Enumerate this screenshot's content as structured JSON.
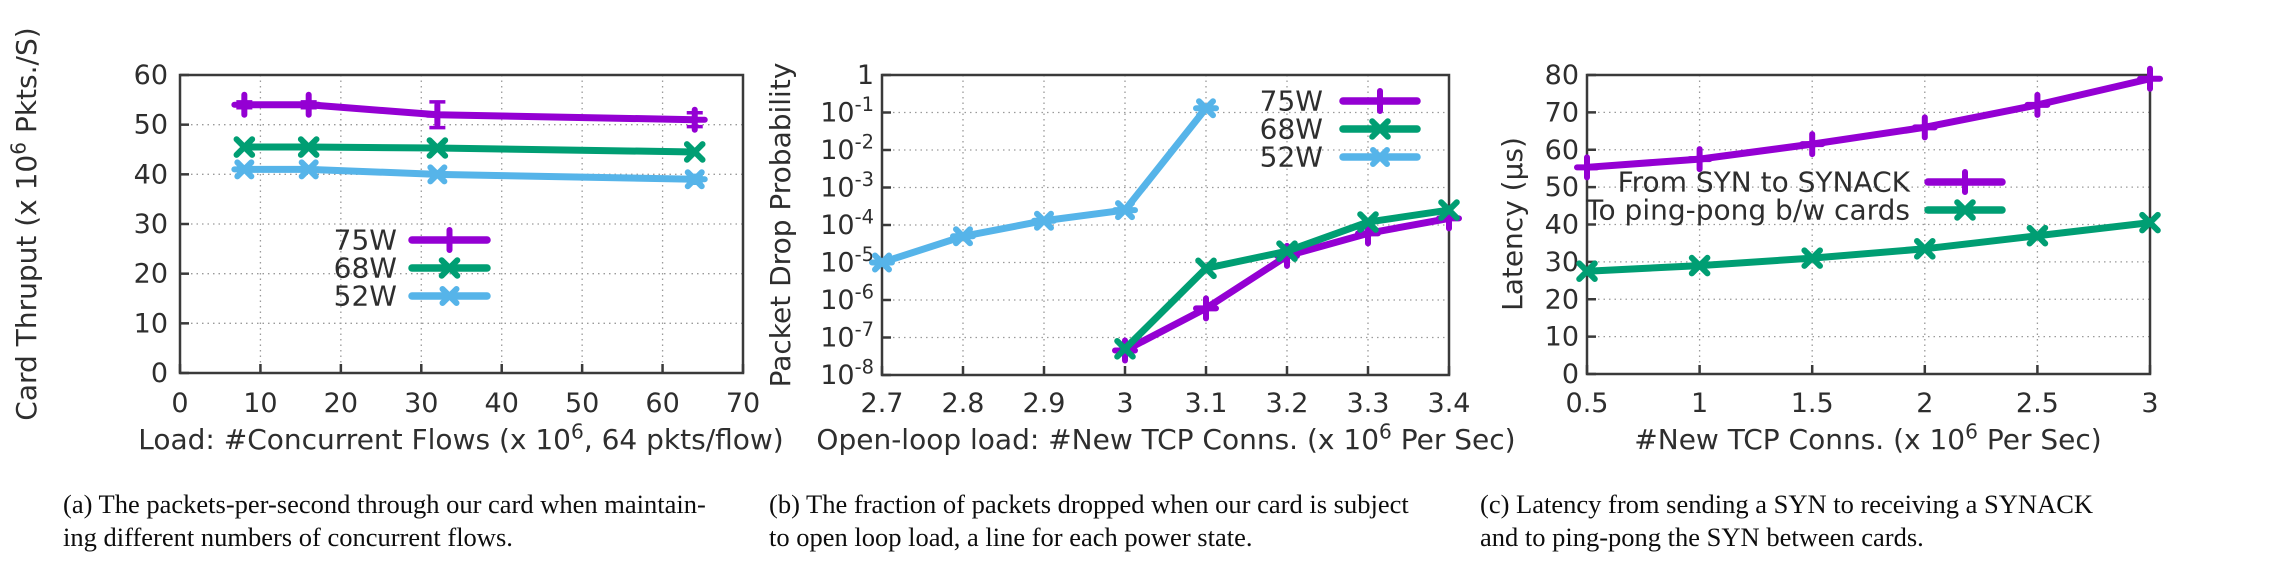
{
  "figure": {
    "background": "#ffffff",
    "frame_color": "#3a3a3a",
    "grid_color": "#9a9a9a",
    "text_color": "#2e2e2e",
    "series_colors": {
      "purple": "#9400d3",
      "green": "#009e73",
      "blue": "#56b4e9"
    }
  },
  "chart_data": [
    {
      "id": "a",
      "type": "line",
      "title": "",
      "xlabel": "Load: #Concurrent Flows (x 10^6, 64 pkts/flow)",
      "ylabel": "Card Thruput (x 10^6 Pkts./S)",
      "xlim": [
        0,
        70
      ],
      "ylim": [
        0,
        60
      ],
      "yscale": "linear",
      "grid": true,
      "legend_position": "inside-center-left",
      "xticks": [
        0,
        10,
        20,
        30,
        40,
        50,
        60,
        70
      ],
      "xtick_labels": [
        "0",
        "10",
        "20",
        "30",
        "40",
        "50",
        "60",
        "70"
      ],
      "yticks": [
        0,
        10,
        20,
        30,
        40,
        50,
        60
      ],
      "ytick_labels": [
        "0",
        "10",
        "20",
        "30",
        "40",
        "50",
        "60"
      ],
      "series": [
        {
          "name": "75W",
          "color": "purple",
          "marker": "plus",
          "x": [
            8,
            16,
            32,
            64
          ],
          "y": [
            54,
            54,
            52,
            51
          ],
          "yerr": [
            0.6,
            0.6,
            2.6,
            1.4
          ]
        },
        {
          "name": "68W",
          "color": "green",
          "marker": "cross",
          "x": [
            8,
            16,
            32,
            64
          ],
          "y": [
            45.5,
            45.5,
            45.3,
            44.5
          ],
          "yerr": [
            0,
            0,
            0,
            0
          ]
        },
        {
          "name": "52W",
          "color": "blue",
          "marker": "star",
          "x": [
            8,
            16,
            32,
            64
          ],
          "y": [
            41,
            41,
            40,
            39
          ],
          "yerr": [
            0,
            0,
            0,
            0.8
          ]
        }
      ]
    },
    {
      "id": "b",
      "type": "line",
      "title": "",
      "xlabel": "Open-loop load: #New TCP Conns. (x 10^6 Per Sec)",
      "ylabel": "Packet Drop Probability",
      "xlim": [
        2.7,
        3.4
      ],
      "ylim": [
        1e-08,
        1
      ],
      "yscale": "log",
      "grid": true,
      "legend_position": "inside-top-right",
      "xticks": [
        2.7,
        2.8,
        2.9,
        3.0,
        3.1,
        3.2,
        3.3,
        3.4
      ],
      "xtick_labels": [
        "2.7",
        "2.8",
        "2.9",
        "3",
        "3.1",
        "3.2",
        "3.3",
        "3.4"
      ],
      "yticks": [
        1,
        0.1,
        0.01,
        0.001,
        0.0001,
        1e-05,
        1e-06,
        1e-07,
        1e-08
      ],
      "ytick_labels": [
        "1",
        "10^-1",
        "10^-2",
        "10^-3",
        "10^-4",
        "10^-5",
        "10^-6",
        "10^-7",
        "10^-8"
      ],
      "series": [
        {
          "name": "75W",
          "color": "purple",
          "marker": "plus",
          "x": [
            3.0,
            3.1,
            3.2,
            3.3,
            3.4
          ],
          "y": [
            4.5e-08,
            6e-07,
            1.5e-05,
            6e-05,
            0.00015
          ],
          "yerr": [
            0,
            0,
            0,
            0,
            0
          ]
        },
        {
          "name": "68W",
          "color": "green",
          "marker": "cross",
          "x": [
            3.0,
            3.1,
            3.2,
            3.3,
            3.4
          ],
          "y": [
            5e-08,
            7e-06,
            2e-05,
            0.00012,
            0.00025
          ],
          "yerr": [
            0,
            0,
            0,
            0,
            0
          ]
        },
        {
          "name": "52W",
          "color": "blue",
          "marker": "star",
          "x": [
            2.7,
            2.8,
            2.9,
            3.0,
            3.1
          ],
          "y": [
            1e-05,
            5e-05,
            0.00013,
            0.00025,
            0.13
          ],
          "yerr": [
            0,
            0,
            0,
            0,
            0
          ]
        }
      ]
    },
    {
      "id": "c",
      "type": "line",
      "title": "",
      "xlabel": "#New TCP Conns. (x 10^6 Per Sec)",
      "ylabel": "Latency (µs)",
      "xlim": [
        0.5,
        3
      ],
      "ylim": [
        0,
        80
      ],
      "yscale": "linear",
      "grid": true,
      "legend_position": "inside-middle-left",
      "xticks": [
        0.5,
        1,
        1.5,
        2,
        2.5,
        3
      ],
      "xtick_labels": [
        "0.5",
        "1",
        "1.5",
        "2",
        "2.5",
        "3"
      ],
      "yticks": [
        0,
        10,
        20,
        30,
        40,
        50,
        60,
        70,
        80
      ],
      "ytick_labels": [
        "0",
        "10",
        "20",
        "30",
        "40",
        "50",
        "60",
        "70",
        "80"
      ],
      "series": [
        {
          "name": "From SYN to SYNACK",
          "color": "purple",
          "marker": "plus",
          "x": [
            0.5,
            1,
            1.5,
            2,
            2.5,
            3
          ],
          "y": [
            55.3,
            57.5,
            61.5,
            66,
            72,
            79
          ],
          "yerr": [
            0,
            0,
            0,
            0,
            0,
            0
          ]
        },
        {
          "name": "To ping-pong b/w cards",
          "color": "green",
          "marker": "cross",
          "x": [
            0.5,
            1,
            1.5,
            2,
            2.5,
            3
          ],
          "y": [
            27.5,
            29,
            31,
            33.5,
            37,
            40.5
          ],
          "yerr": [
            0,
            0,
            0,
            0,
            0,
            0
          ]
        }
      ]
    }
  ],
  "captions": [
    {
      "text": "(a) The packets-per-second through our card when maintain-\ning different numbers of concurrent flows."
    },
    {
      "text": "(b) The fraction of packets dropped when our card is subject\nto open loop load, a line for each power state."
    },
    {
      "text": "(c) Latency from sending a SYN to receiving a SYNACK\nand to ping-pong the SYN between cards."
    }
  ]
}
